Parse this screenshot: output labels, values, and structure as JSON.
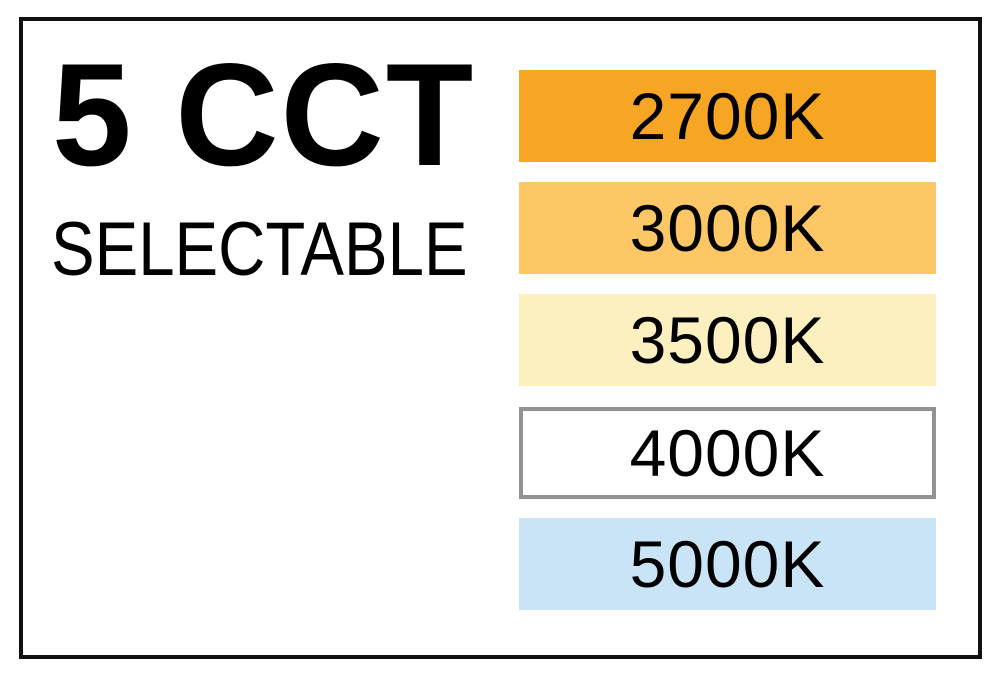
{
  "heading": {
    "title": "5 CCT",
    "subtitle": "SELECTABLE"
  },
  "swatches": [
    {
      "label": "2700K",
      "color": "#F7A623"
    },
    {
      "label": "3000K",
      "color": "#FDC765"
    },
    {
      "label": "3500K",
      "color": "#FCEFC0"
    },
    {
      "label": "4000K",
      "color": "#FFFFFF",
      "border": "#939393"
    },
    {
      "label": "5000K",
      "color": "#C9E4F6"
    }
  ]
}
